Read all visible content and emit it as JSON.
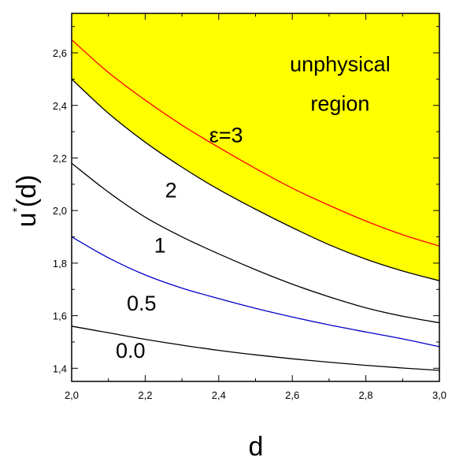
{
  "chart_data": {
    "type": "line",
    "xlabel": "d",
    "ylabel": "u",
    "ylabel_superscript": "*",
    "ylabel_suffix": "(d)",
    "xlim": [
      2.0,
      3.0
    ],
    "ylim": [
      1.35,
      2.75
    ],
    "x_ticks": [
      2.0,
      2.2,
      2.4,
      2.6,
      2.8,
      3.0
    ],
    "x_tick_labels": [
      "2,0",
      "2,2",
      "2,4",
      "2,6",
      "2,8",
      "3,0"
    ],
    "y_ticks": [
      1.4,
      1.6,
      1.8,
      2.0,
      2.2,
      2.4,
      2.6
    ],
    "y_tick_labels": [
      "1,4",
      "1,6",
      "1,8",
      "2,0",
      "2,2",
      "2,4",
      "2,6"
    ],
    "grid": false,
    "region": {
      "label_line1": "unphysical",
      "label_line2": "region",
      "fill": "#ffff00"
    },
    "series": [
      {
        "name": "0.0",
        "color": "#000000",
        "x": [
          2.0,
          2.1,
          2.2,
          2.3,
          2.4,
          2.5,
          2.6,
          2.7,
          2.8,
          2.9,
          3.0
        ],
        "y": [
          1.56,
          1.535,
          1.51,
          1.488,
          1.468,
          1.451,
          1.436,
          1.423,
          1.411,
          1.401,
          1.392
        ]
      },
      {
        "name": "0.5",
        "color": "#0000cc",
        "x": [
          2.0,
          2.1,
          2.2,
          2.3,
          2.4,
          2.5,
          2.6,
          2.7,
          2.8,
          2.9,
          3.0
        ],
        "y": [
          1.9,
          1.82,
          1.755,
          1.705,
          1.665,
          1.628,
          1.595,
          1.565,
          1.538,
          1.512,
          1.482
        ]
      },
      {
        "name": "1",
        "color": "#000000",
        "x": [
          2.0,
          2.1,
          2.2,
          2.3,
          2.4,
          2.5,
          2.6,
          2.7,
          2.8,
          2.9,
          3.0
        ],
        "y": [
          2.18,
          2.07,
          1.975,
          1.9,
          1.835,
          1.775,
          1.72,
          1.672,
          1.63,
          1.598,
          1.573
        ]
      },
      {
        "name": "2",
        "color": "#000000",
        "x": [
          2.0,
          2.1,
          2.2,
          2.3,
          2.4,
          2.5,
          2.6,
          2.7,
          2.8,
          2.9,
          3.0
        ],
        "y": [
          2.5,
          2.37,
          2.26,
          2.165,
          2.08,
          2.005,
          1.935,
          1.87,
          1.815,
          1.77,
          1.733
        ]
      },
      {
        "name": "ε=3",
        "color": "#ff0000",
        "x": [
          2.0,
          2.1,
          2.2,
          2.3,
          2.4,
          2.5,
          2.6,
          2.7,
          2.8,
          2.9,
          3.0
        ],
        "y": [
          2.65,
          2.525,
          2.42,
          2.325,
          2.24,
          2.16,
          2.085,
          2.02,
          1.96,
          1.908,
          1.865
        ]
      }
    ],
    "curve_labels": [
      {
        "text": "ε=3",
        "x": 2.42,
        "y": 2.26
      },
      {
        "text": "2",
        "x": 2.27,
        "y": 2.05
      },
      {
        "text": "1",
        "x": 2.24,
        "y": 1.84
      },
      {
        "text": "0.5",
        "x": 2.19,
        "y": 1.62
      },
      {
        "text": "0.0",
        "x": 2.16,
        "y": 1.44
      }
    ],
    "region_label_position": {
      "x": 2.73,
      "y": 2.53
    }
  }
}
